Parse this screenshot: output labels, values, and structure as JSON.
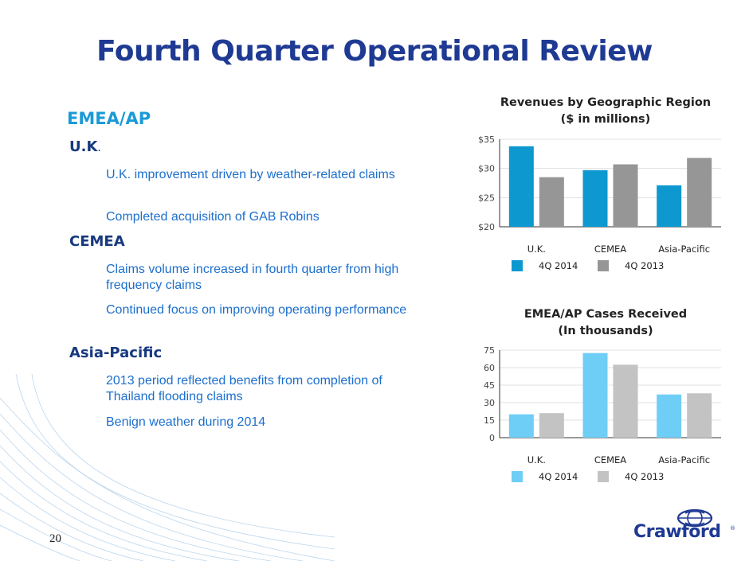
{
  "slide": {
    "title": "Fourth Quarter Operational Review",
    "page_number": "20"
  },
  "content": {
    "section_title": "EMEA/AP",
    "regions": [
      {
        "name": "U.K",
        "suffix": ".",
        "bullets": [
          "U.K. improvement driven by weather-related claims",
          "Completed acquisition of GAB Robins"
        ]
      },
      {
        "name": "CEMEA",
        "suffix": "",
        "bullets": [
          "Claims volume increased in fourth quarter from high frequency claims",
          "Continued focus on improving operating performance"
        ]
      },
      {
        "name": "Asia-Pacific",
        "suffix": "",
        "bullets": [
          "2013 period reflected benefits from completion of Thailand flooding claims",
          "Benign weather during 2014"
        ]
      }
    ]
  },
  "logo": {
    "text": "Crawford",
    "reg": "®"
  },
  "chart_data": [
    {
      "type": "bar",
      "title_line1": "Revenues by Geographic Region",
      "title_line2": "($ in millions)",
      "categories": [
        "U.K.",
        "CEMEA",
        "Asia-Pacific"
      ],
      "series": [
        {
          "name": "4Q 2014",
          "color": "#0d98cf",
          "values": [
            33.8,
            29.7,
            27.1
          ]
        },
        {
          "name": "4Q 2013",
          "color": "#969696",
          "values": [
            28.5,
            30.7,
            31.8
          ]
        }
      ],
      "ylim": [
        20,
        35
      ],
      "yticks": [
        20,
        25,
        30,
        35
      ],
      "ytick_labels": [
        "$20",
        "$25",
        "$30",
        "$35"
      ],
      "grid": true
    },
    {
      "type": "bar",
      "title_line1": "EMEA/AP Cases Received",
      "title_line2": "(In thousands)",
      "categories": [
        "U.K.",
        "CEMEA",
        "Asia-Pacific"
      ],
      "series": [
        {
          "name": "4Q 2014",
          "color": "#6fcef5",
          "values": [
            20,
            72.5,
            37
          ]
        },
        {
          "name": "4Q 2013",
          "color": "#c3c3c3",
          "values": [
            21,
            62.5,
            38
          ]
        }
      ],
      "ylim": [
        0,
        75
      ],
      "yticks": [
        0,
        15,
        30,
        45,
        60,
        75
      ],
      "ytick_labels": [
        "0",
        "15",
        "30",
        "45",
        "60",
        "75"
      ],
      "grid": true
    }
  ]
}
